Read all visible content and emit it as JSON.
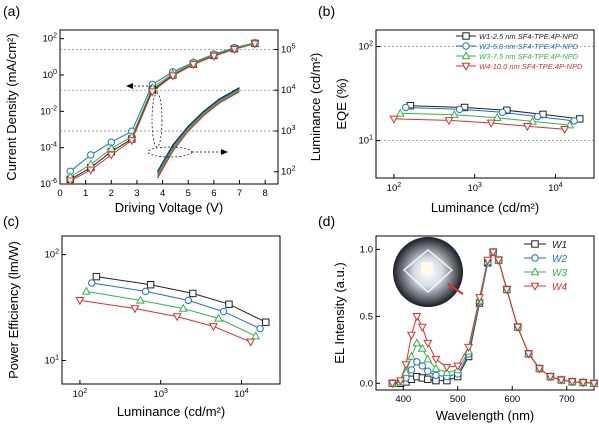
{
  "panels": {
    "a": {
      "label": "(a)"
    },
    "b": {
      "label": "(b)"
    },
    "c": {
      "label": "(c)"
    },
    "d": {
      "label": "(d)"
    }
  },
  "chart_data": [
    {
      "panel": "a",
      "type": "line",
      "xlabel": "Driving Voltage (V)",
      "ylabel": "Current Density (mA/cm²)",
      "y2label": "Luminance (cd/m²)",
      "xlim": [
        0,
        8.5
      ],
      "ylim": [
        1e-06,
        300
      ],
      "y2lim": [
        50,
        300000.0
      ],
      "xticks": [
        0,
        1,
        2,
        3,
        4,
        5,
        6,
        7,
        8
      ],
      "yticks": [
        "10^-6",
        "10^-4",
        "10^-2",
        "10^0",
        "10^2"
      ],
      "y2ticks": [
        "10^2",
        "10^3",
        "10^4",
        "10^5"
      ],
      "yscale": "log",
      "y2scale": "log",
      "x": [
        0.4,
        1.2,
        2.0,
        2.8,
        3.6,
        4.4,
        5.2,
        6.0,
        6.8,
        7.6
      ],
      "series": [
        {
          "name": "W1",
          "color": "#222222",
          "marker": "square",
          "current_density": [
            1.8e-06,
            8e-06,
            6e-05,
            0.0003,
            0.15,
            1.0,
            4.0,
            12,
            28,
            55
          ]
        },
        {
          "name": "W2",
          "color": "#1f6fd1",
          "marker": "circle",
          "current_density": [
            5e-06,
            4e-05,
            0.0002,
            0.0008,
            0.3,
            1.5,
            5.0,
            14,
            32,
            60
          ]
        },
        {
          "name": "W3",
          "color": "#2fb84a",
          "marker": "triangle-up",
          "current_density": [
            2.5e-06,
            1.2e-05,
            9e-05,
            0.0004,
            0.2,
            1.2,
            4.5,
            13,
            30,
            58
          ]
        },
        {
          "name": "W4",
          "color": "#e0302a",
          "marker": "triangle-down",
          "current_density": [
            1.5e-06,
            6e-06,
            4e-05,
            0.00025,
            0.12,
            0.9,
            3.8,
            11,
            26,
            52
          ]
        }
      ],
      "luminance_series": [
        {
          "name": "W1",
          "x": [
            3.8,
            4.4,
            5.0,
            5.6,
            6.2,
            7.0
          ],
          "values": [
            100,
            450,
            1300,
            3000,
            6000,
            11500
          ]
        },
        {
          "name": "W2",
          "x": [
            3.8,
            4.4,
            5.0,
            5.6,
            6.2,
            7.0
          ],
          "values": [
            90,
            410,
            1200,
            2800,
            5600,
            10800
          ]
        },
        {
          "name": "W3",
          "x": [
            3.8,
            4.4,
            5.0,
            5.6,
            6.2,
            7.0
          ],
          "values": [
            80,
            360,
            1100,
            2600,
            5200,
            10000
          ]
        },
        {
          "name": "W4",
          "x": [
            3.8,
            4.4,
            5.0,
            5.6,
            6.2,
            7.0
          ],
          "values": [
            70,
            320,
            1000,
            2400,
            4800,
            9300
          ]
        }
      ]
    },
    {
      "panel": "b",
      "type": "line",
      "xlabel": "Luminance (cd/m²)",
      "ylabel": "EQE (%)",
      "xscale": "log",
      "yscale": "log",
      "xlim": [
        60,
        30000
      ],
      "ylim": [
        4,
        150
      ],
      "xticks": [
        "10^2",
        "10^3",
        "10^4"
      ],
      "yticks": [
        "10^1",
        "10^2"
      ],
      "legend_position": "top-right",
      "series": [
        {
          "name": "W1-2.5 nm SF4-TPE:4P-NPD",
          "color": "#222222",
          "marker": "square",
          "x": [
            160,
            750,
            2500,
            7000,
            20000
          ],
          "values": [
            23.5,
            22.5,
            21.0,
            19.0,
            17.0
          ]
        },
        {
          "name": "W2-5.0 nm SF4-TPE:4P-NPD",
          "color": "#1f6fd1",
          "marker": "circle",
          "x": [
            140,
            650,
            2200,
            6000,
            17000
          ],
          "values": [
            22.5,
            21.5,
            20.0,
            18.0,
            16.2
          ]
        },
        {
          "name": "W3-7.5 nm SF4-TPE:4P-NPD",
          "color": "#2fb84a",
          "marker": "triangle-up",
          "x": [
            120,
            560,
            1900,
            5200,
            15000
          ],
          "values": [
            19.5,
            18.8,
            17.5,
            16.0,
            14.6
          ]
        },
        {
          "name": "W4-10.0 nm SF4-TPE:4P-NPD",
          "color": "#e0302a",
          "marker": "triangle-down",
          "x": [
            100,
            480,
            1600,
            4500,
            13000
          ],
          "values": [
            17.0,
            16.4,
            15.4,
            14.2,
            13.2
          ]
        }
      ]
    },
    {
      "panel": "c",
      "type": "line",
      "xlabel": "Luminance (cd/m²)",
      "ylabel": "Power Efficiency (lm/W)",
      "xscale": "log",
      "yscale": "log",
      "xlim": [
        60,
        30000
      ],
      "ylim": [
        6,
        150
      ],
      "xticks": [
        "10^2",
        "10^3",
        "10^4"
      ],
      "yticks": [
        "10^1",
        "10^2"
      ],
      "series": [
        {
          "name": "W1",
          "color": "#222222",
          "marker": "square",
          "x": [
            160,
            750,
            2500,
            7000,
            20000
          ],
          "values": [
            62,
            52,
            43,
            34,
            23
          ]
        },
        {
          "name": "W2",
          "color": "#1f6fd1",
          "marker": "circle",
          "x": [
            140,
            650,
            2200,
            6000,
            17000
          ],
          "values": [
            54,
            45,
            37,
            29,
            20
          ]
        },
        {
          "name": "W3",
          "color": "#2fb84a",
          "marker": "triangle-up",
          "x": [
            120,
            560,
            1900,
            5200,
            15000
          ],
          "values": [
            45,
            37,
            31,
            25,
            17
          ]
        },
        {
          "name": "W4",
          "color": "#e0302a",
          "marker": "triangle-down",
          "x": [
            100,
            480,
            1600,
            4500,
            13000
          ],
          "values": [
            37,
            31,
            26,
            21,
            15
          ]
        }
      ]
    },
    {
      "panel": "d",
      "type": "line",
      "xlabel": "Wavelength (nm)",
      "ylabel": "EL Intensity (a.u.)",
      "xlim": [
        350,
        750
      ],
      "ylim": [
        -0.05,
        1.1
      ],
      "xticks": [
        400,
        500,
        600,
        700
      ],
      "yticks": [
        "0.0",
        "0.5",
        "1.0"
      ],
      "legend_position": "top-right",
      "x": [
        380,
        395,
        405,
        415,
        425,
        435,
        445,
        460,
        480,
        500,
        520,
        540,
        555,
        565,
        575,
        590,
        610,
        630,
        650,
        670,
        690,
        710,
        730,
        750
      ],
      "series": [
        {
          "name": "W1",
          "color": "#222222",
          "marker": "square",
          "values": [
            0.0,
            0.0,
            0.01,
            0.03,
            0.05,
            0.04,
            0.03,
            0.02,
            0.02,
            0.05,
            0.2,
            0.6,
            0.9,
            0.98,
            0.92,
            0.7,
            0.42,
            0.22,
            0.11,
            0.05,
            0.025,
            0.012,
            0.006,
            0.0
          ]
        },
        {
          "name": "W2",
          "color": "#1f6fd1",
          "marker": "circle",
          "values": [
            0.0,
            0.01,
            0.04,
            0.1,
            0.16,
            0.13,
            0.09,
            0.06,
            0.05,
            0.07,
            0.22,
            0.61,
            0.9,
            0.98,
            0.92,
            0.7,
            0.42,
            0.22,
            0.11,
            0.05,
            0.025,
            0.012,
            0.006,
            0.0
          ]
        },
        {
          "name": "W3",
          "color": "#2fb84a",
          "marker": "triangle-up",
          "values": [
            0.0,
            0.01,
            0.08,
            0.2,
            0.3,
            0.26,
            0.18,
            0.11,
            0.08,
            0.1,
            0.24,
            0.62,
            0.91,
            0.98,
            0.92,
            0.7,
            0.42,
            0.22,
            0.11,
            0.05,
            0.025,
            0.012,
            0.006,
            0.0
          ]
        },
        {
          "name": "W4",
          "color": "#e0302a",
          "marker": "triangle-down",
          "values": [
            0.0,
            0.02,
            0.14,
            0.36,
            0.5,
            0.42,
            0.3,
            0.18,
            0.12,
            0.13,
            0.27,
            0.64,
            0.92,
            0.98,
            0.92,
            0.7,
            0.42,
            0.22,
            0.11,
            0.05,
            0.025,
            0.012,
            0.006,
            0.0
          ]
        }
      ]
    }
  ]
}
